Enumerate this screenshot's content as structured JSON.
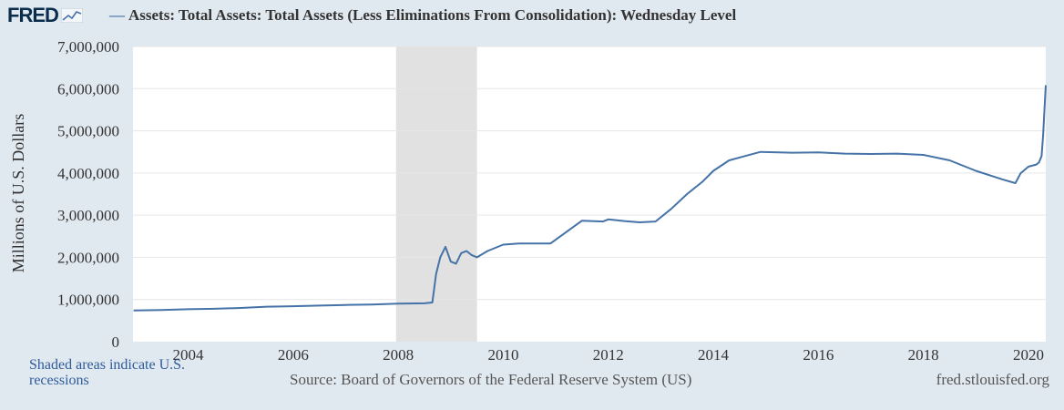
{
  "header": {
    "logo_text": "FRED",
    "logo_icon": "line-chart-icon",
    "series_title": "Assets: Total Assets: Total Assets (Less Eliminations From Consolidation): Wednesday Level"
  },
  "footer": {
    "recession_note": "Shaded areas indicate U.S. recessions",
    "source": "Source: Board of Governors of the Federal Reserve System (US)",
    "url": "fred.stlouisfed.org"
  },
  "colors": {
    "line": "#4572a7",
    "recession": "#e1e1e1",
    "background": "#e1e9f0",
    "plot": "#ffffff"
  },
  "chart_data": {
    "type": "line",
    "title": "Assets: Total Assets: Total Assets (Less Eliminations From Consolidation): Wednesday Level",
    "ylabel": "Millions of U.S. Dollars",
    "xlabel": "",
    "xlim": [
      2002.95,
      2020.33
    ],
    "ylim": [
      0,
      7000000
    ],
    "x_ticks": [
      {
        "value": 2004,
        "label": "2004"
      },
      {
        "value": 2006,
        "label": "2006"
      },
      {
        "value": 2008,
        "label": "2008"
      },
      {
        "value": 2010,
        "label": "2010"
      },
      {
        "value": 2012,
        "label": "2012"
      },
      {
        "value": 2014,
        "label": "2014"
      },
      {
        "value": 2016,
        "label": "2016"
      },
      {
        "value": 2018,
        "label": "2018"
      },
      {
        "value": 2020,
        "label": "2020"
      }
    ],
    "y_ticks": [
      {
        "value": 0,
        "label": "0"
      },
      {
        "value": 1000000,
        "label": "1,000,000"
      },
      {
        "value": 2000000,
        "label": "2,000,000"
      },
      {
        "value": 3000000,
        "label": "3,000,000"
      },
      {
        "value": 4000000,
        "label": "4,000,000"
      },
      {
        "value": 5000000,
        "label": "5,000,000"
      },
      {
        "value": 6000000,
        "label": "6,000,000"
      },
      {
        "value": 7000000,
        "label": "7,000,000"
      }
    ],
    "grid": true,
    "recessions": [
      {
        "start": 2007.96,
        "end": 2009.5
      }
    ],
    "series": [
      {
        "x": [
          2002.96,
          2003.5,
          2004.0,
          2004.5,
          2005.0,
          2005.5,
          2006.0,
          2006.5,
          2007.0,
          2007.5,
          2008.0,
          2008.5,
          2008.65,
          2008.72,
          2008.8,
          2008.9,
          2009.0,
          2009.1,
          2009.2,
          2009.3,
          2009.4,
          2009.5,
          2009.7,
          2010.0,
          2010.3,
          2010.5,
          2010.9,
          2011.2,
          2011.5,
          2011.9,
          2012.0,
          2012.3,
          2012.6,
          2012.9,
          2013.2,
          2013.5,
          2013.8,
          2014.0,
          2014.3,
          2014.6,
          2014.9,
          2015.5,
          2016.0,
          2016.5,
          2017.0,
          2017.5,
          2018.0,
          2018.5,
          2019.0,
          2019.5,
          2019.75,
          2019.85,
          2020.0,
          2020.15,
          2020.2,
          2020.25,
          2020.28,
          2020.31,
          2020.33
        ],
        "values": [
          740000,
          750000,
          770000,
          780000,
          800000,
          830000,
          840000,
          855000,
          870000,
          880000,
          900000,
          910000,
          930000,
          1600000,
          2000000,
          2250000,
          1900000,
          1850000,
          2100000,
          2150000,
          2050000,
          2000000,
          2150000,
          2300000,
          2330000,
          2330000,
          2330000,
          2600000,
          2870000,
          2850000,
          2900000,
          2860000,
          2830000,
          2850000,
          3150000,
          3500000,
          3800000,
          4050000,
          4300000,
          4400000,
          4500000,
          4480000,
          4490000,
          4460000,
          4450000,
          4460000,
          4430000,
          4300000,
          4050000,
          3850000,
          3760000,
          3990000,
          4150000,
          4200000,
          4250000,
          4400000,
          4900000,
          5600000,
          6080000
        ]
      }
    ]
  }
}
